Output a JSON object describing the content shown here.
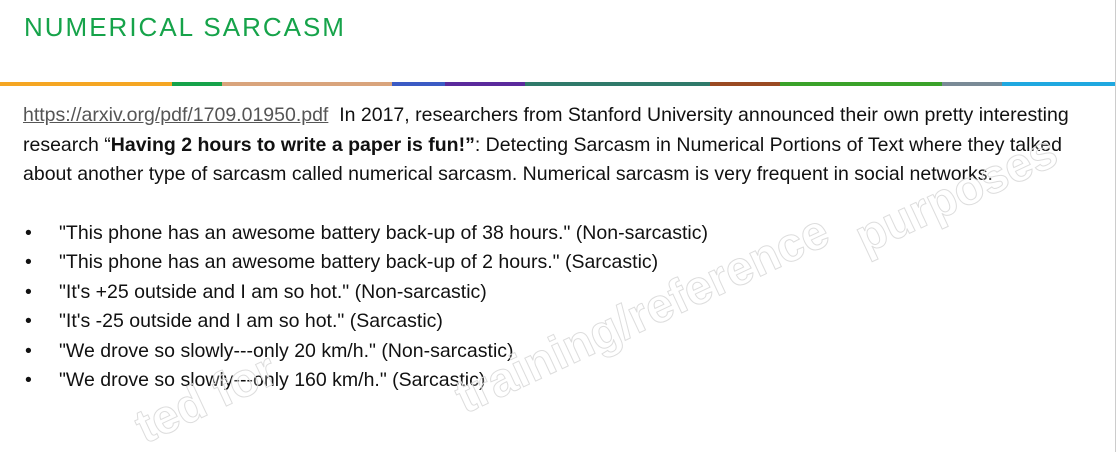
{
  "header": {
    "title": "NUMERICAL SARCASM"
  },
  "body": {
    "link": "https://arxiv.org/pdf/1709.01950.pdf",
    "intro_before": "In 2017, researchers from Stanford University announced their own pretty interesting research “",
    "intro_bold": "Having 2 hours to write a paper is fun!”",
    "intro_after": ": Detecting Sarcasm in Numerical Portions of Text where they talked about another type of sarcasm called numerical sarcasm. Numerical sarcasm is very frequent in social networks.",
    "bullets": [
      "\"This phone has an awesome battery back-up of 38 hours.\" (Non-sarcastic)",
      "\"This phone has an awesome battery back-up of 2 hours.\" (Sarcastic)",
      "\"It's +25 outside and I am so hot.\" (Non-sarcastic)",
      "\"It's -25 outside and I am so hot.\" (Sarcastic)",
      "\"We drove so slowly---only 20 km/h.\" (Non-sarcastic)",
      "\"We drove so slowly---only 160 km/h.\" (Sarcastic)"
    ]
  },
  "watermark": [
    "purposes",
    "training/reference",
    "ted for"
  ]
}
